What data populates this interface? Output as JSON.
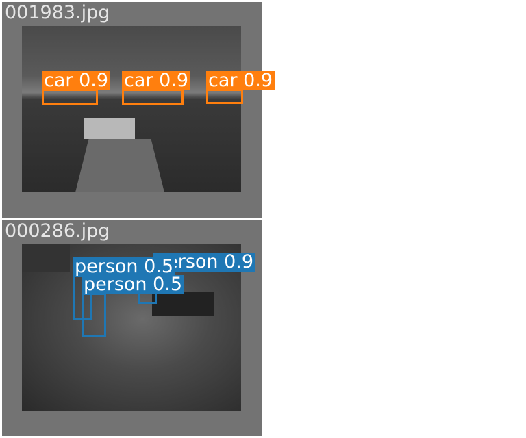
{
  "colors": {
    "car": "#ff7f0e",
    "person": "#1f77b4",
    "tile_bg": "#737373"
  },
  "panels": [
    {
      "filename": "001983.jpg",
      "detections": [
        {
          "label": "car 0.9"
        },
        {
          "label": "car 0.9"
        },
        {
          "label": "car 0.9"
        }
      ]
    },
    {
      "filename": "000286.jpg",
      "detections": [
        {
          "label": "person 0.9"
        },
        {
          "label": "person 0.5"
        },
        {
          "label": "person 0.5"
        }
      ]
    }
  ]
}
